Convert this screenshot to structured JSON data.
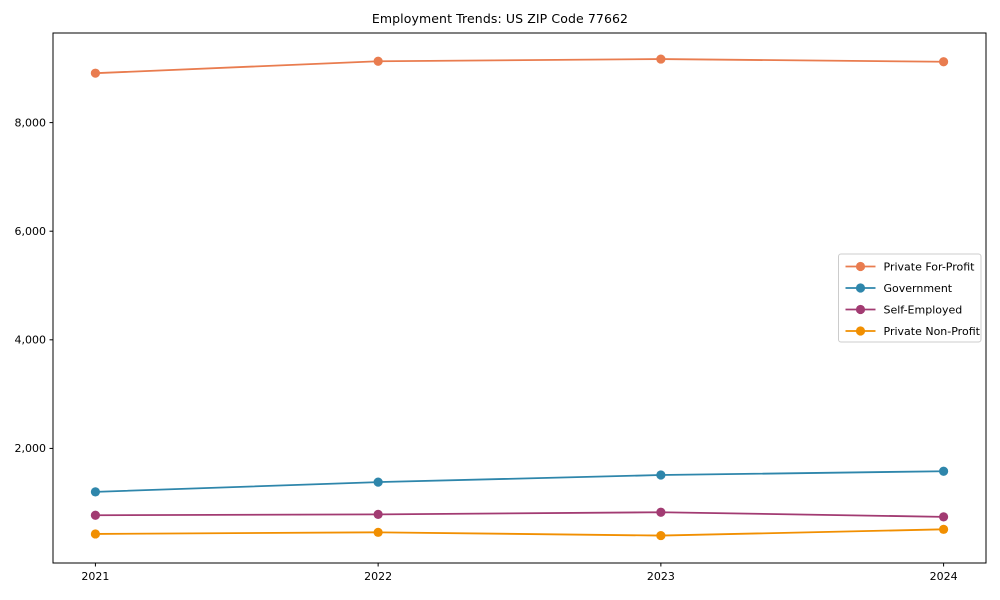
{
  "chart_data": {
    "type": "line",
    "title": "Employment Trends: US ZIP Code 77662",
    "xlabel": "",
    "ylabel": "",
    "x": [
      2021,
      2022,
      2023,
      2024
    ],
    "x_tick_labels": [
      "2021",
      "2022",
      "2023",
      "2024"
    ],
    "series": [
      {
        "name": "Private For-Profit",
        "color": "#E97C4F",
        "values": [
          8910,
          9130,
          9170,
          9120
        ]
      },
      {
        "name": "Government",
        "color": "#2E86AB",
        "values": [
          1200,
          1380,
          1510,
          1580
        ]
      },
      {
        "name": "Self-Employed",
        "color": "#A23B72",
        "values": [
          770,
          785,
          825,
          740
        ]
      },
      {
        "name": "Private Non-Profit",
        "color": "#F18F01",
        "values": [
          425,
          455,
          395,
          510
        ]
      }
    ],
    "xlim": [
      2020.85,
      2024.15
    ],
    "ylim": [
      -110,
      9650
    ],
    "yticks": [
      2000,
      4000,
      6000,
      8000
    ],
    "ytick_labels": [
      "2,000",
      "4,000",
      "6,000",
      "8,000"
    ],
    "grid": false,
    "legend": {
      "position": "right-center",
      "frame": true,
      "frame_color": "#cccccc"
    },
    "marker": "circle",
    "background_color": "#ffffff",
    "spine_color": "#000000"
  }
}
